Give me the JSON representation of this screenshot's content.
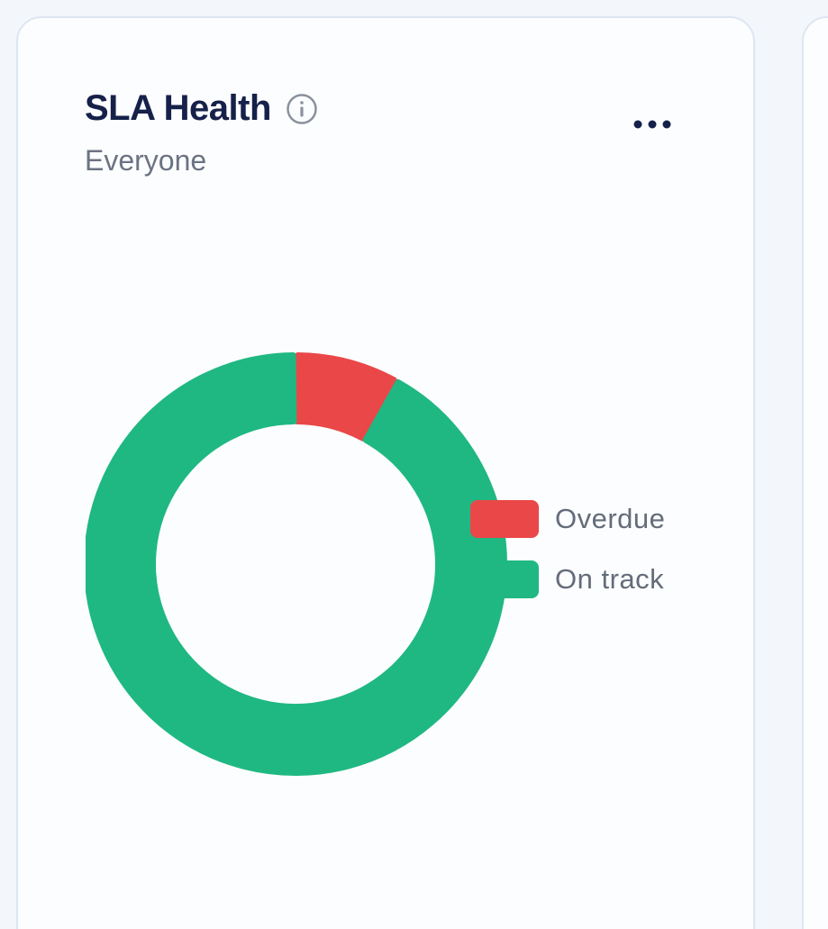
{
  "card": {
    "title": "SLA Health",
    "subtitle": "Everyone",
    "info_icon": "info-circle-icon",
    "menu_icon": "more-horizontal-icon"
  },
  "colors": {
    "overdue": "#ea4749",
    "on_track": "#1fb882",
    "title": "#16214a",
    "muted": "#6b7383"
  },
  "chart_data": {
    "type": "pie",
    "style": "donut",
    "categories": [
      "Overdue",
      "On track"
    ],
    "values": [
      8,
      92
    ],
    "legend": {
      "placement": "right",
      "entries": [
        "Overdue",
        "On track"
      ]
    }
  }
}
